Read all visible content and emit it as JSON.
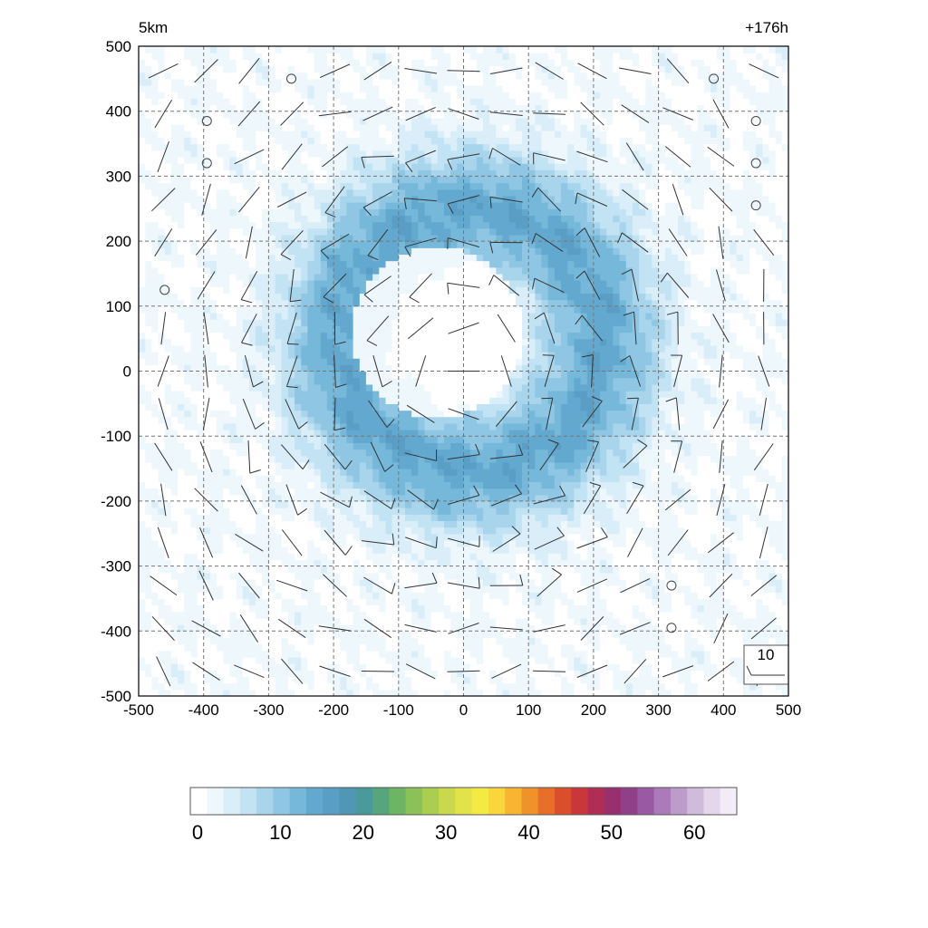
{
  "chart_data": {
    "type": "heatmap",
    "title": "",
    "level_label": "5km",
    "time_label": "+176h",
    "xlabel": "",
    "ylabel": "",
    "xlim": [
      -500,
      500
    ],
    "ylim": [
      -500,
      500
    ],
    "x_ticks": [
      "-500",
      "-400",
      "-300",
      "-200",
      "-100",
      "0",
      "100",
      "200",
      "300",
      "400",
      "500"
    ],
    "y_ticks": [
      "500",
      "400",
      "300",
      "200",
      "100",
      "0",
      "-100",
      "-200",
      "-300",
      "-400",
      "-500"
    ],
    "grid": true,
    "field": {
      "description_units": "ring",
      "eye_center": [
        30,
        80
      ],
      "eye_radius": 130,
      "ring_radius": 250,
      "ring_peak_value": 13,
      "background_value": 2
    },
    "wind_barbs": {
      "spacing": 66,
      "circulation": "cyclonic",
      "max_speed_radius": 250,
      "calm_points": [
        [
          -265,
          450
        ],
        [
          -395,
          385
        ],
        [
          -395,
          320
        ],
        [
          -460,
          125
        ],
        [
          385,
          450
        ],
        [
          450,
          385
        ],
        [
          450,
          320
        ],
        [
          450,
          255
        ],
        [
          320,
          -330
        ],
        [
          320,
          -395
        ]
      ]
    },
    "reference_vector": {
      "label": "10"
    },
    "colorbar": {
      "min": 0,
      "max": 66,
      "ticks": [
        "0",
        "10",
        "20",
        "30",
        "40",
        "50",
        "60"
      ],
      "colors": [
        "#ffffff",
        "#eef7fc",
        "#d9eef8",
        "#c2e3f3",
        "#a8d5ec",
        "#8ec6e3",
        "#76b8da",
        "#63a8cf",
        "#5a9ec6",
        "#4f97b5",
        "#4a9a9b",
        "#55a67d",
        "#6db464",
        "#8cc157",
        "#abcd50",
        "#c9d84c",
        "#e2e24a",
        "#f5ea43",
        "#fad53c",
        "#f7b531",
        "#ef922a",
        "#e76f2a",
        "#da4e2c",
        "#c9373b",
        "#b02e55",
        "#983070",
        "#904089",
        "#9a5aa3",
        "#ab7ab8",
        "#bd9bcb",
        "#d0bbdc",
        "#e4d7ec",
        "#f3ecf6"
      ]
    }
  }
}
